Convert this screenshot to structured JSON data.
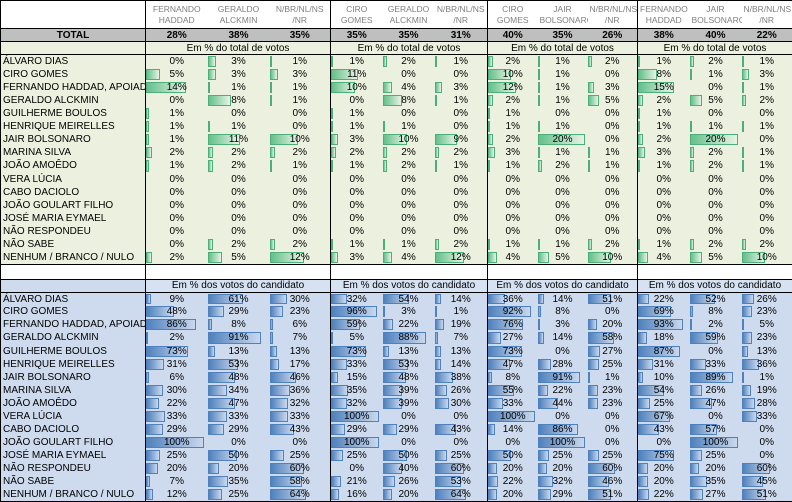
{
  "table": {
    "total_label": "TOTAL",
    "groups": [
      {
        "cols": [
          "FERNANDO HADDAD",
          "GERALDO ALCKMIN",
          "N/BR/NL/NS /NR"
        ],
        "totals": [
          "28%",
          "38%",
          "35%"
        ]
      },
      {
        "cols": [
          "CIRO GOMES",
          "GERALDO ALCKMIN",
          "N/BR/NL/NS /NR"
        ],
        "totals": [
          "35%",
          "35%",
          "31%"
        ]
      },
      {
        "cols": [
          "CIRO GOMES",
          "JAIR BOLSONARO",
          "N/BR/NL/NS /NR"
        ],
        "totals": [
          "40%",
          "35%",
          "26%"
        ]
      },
      {
        "cols": [
          "FERNANDO HADDAD",
          "JAIR BOLSONARO",
          "N/BR/NL/NS /NR"
        ],
        "totals": [
          "38%",
          "40%",
          "22%"
        ]
      }
    ],
    "row_labels": [
      "ÁLVARO DIAS",
      "CIRO GOMES",
      "FERNANDO HADDAD, APOIAD",
      "GERALDO ALCKMIN",
      "GUILHERME BOULOS",
      "HENRIQUE MEIRELLES",
      "JAIR BOLSONARO",
      "MARINA SILVA",
      "JOÃO AMOÊDO",
      "VERA LÚCIA",
      "CABO DACIOLO",
      "JOÃO GOULART FILHO",
      "JOSÉ MARIA EYMAEL",
      "NÃO RESPONDEU",
      "NÃO SABE",
      "NENHUM / BRANCO / NULO"
    ],
    "section1": {
      "label": "Em % do total de votos",
      "bar_max": 20,
      "rows": [
        [
          0,
          3,
          1,
          1,
          2,
          1,
          2,
          1,
          2,
          1,
          2,
          1
        ],
        [
          5,
          3,
          3,
          11,
          0,
          0,
          10,
          1,
          0,
          8,
          1,
          3
        ],
        [
          14,
          1,
          1,
          10,
          4,
          3,
          12,
          1,
          3,
          15,
          0,
          1
        ],
        [
          0,
          8,
          1,
          0,
          8,
          1,
          2,
          1,
          5,
          2,
          5,
          2
        ],
        [
          1,
          0,
          0,
          1,
          0,
          0,
          1,
          0,
          0,
          1,
          0,
          0
        ],
        [
          1,
          1,
          0,
          1,
          1,
          0,
          1,
          1,
          0,
          1,
          1,
          1
        ],
        [
          1,
          11,
          10,
          3,
          10,
          9,
          2,
          20,
          0,
          2,
          20,
          0
        ],
        [
          2,
          2,
          2,
          2,
          2,
          2,
          3,
          1,
          1,
          3,
          2,
          1
        ],
        [
          1,
          2,
          1,
          1,
          2,
          1,
          1,
          2,
          1,
          1,
          2,
          1
        ],
        [
          0,
          0,
          0,
          0,
          0,
          0,
          0,
          0,
          0,
          0,
          0,
          0
        ],
        [
          0,
          0,
          0,
          0,
          0,
          0,
          0,
          0,
          0,
          0,
          0,
          0
        ],
        [
          0,
          0,
          0,
          0,
          0,
          0,
          0,
          0,
          0,
          0,
          0,
          0
        ],
        [
          0,
          0,
          0,
          0,
          0,
          0,
          0,
          0,
          0,
          0,
          0,
          0
        ],
        [
          0,
          0,
          0,
          0,
          0,
          0,
          0,
          0,
          0,
          0,
          0,
          0
        ],
        [
          0,
          2,
          2,
          1,
          1,
          2,
          1,
          1,
          2,
          1,
          2,
          2
        ],
        [
          2,
          5,
          12,
          3,
          4,
          12,
          4,
          5,
          10,
          4,
          5,
          10
        ]
      ]
    },
    "section2": {
      "label": "Em % dos votos do candidato",
      "bar_max": 100,
      "rows": [
        [
          9,
          61,
          30,
          32,
          54,
          14,
          36,
          14,
          51,
          22,
          52,
          26
        ],
        [
          48,
          29,
          23,
          96,
          3,
          1,
          92,
          8,
          0,
          69,
          8,
          23
        ],
        [
          86,
          8,
          6,
          59,
          22,
          19,
          76,
          3,
          20,
          93,
          2,
          5
        ],
        [
          2,
          91,
          7,
          5,
          88,
          7,
          27,
          14,
          58,
          18,
          59,
          23
        ],
        [
          73,
          13,
          13,
          73,
          13,
          13,
          73,
          0,
          27,
          87,
          0,
          13
        ],
        [
          31,
          53,
          17,
          33,
          53,
          14,
          47,
          28,
          25,
          31,
          33,
          36
        ],
        [
          6,
          48,
          46,
          15,
          48,
          38,
          8,
          91,
          1,
          10,
          89,
          1
        ],
        [
          30,
          34,
          36,
          35,
          39,
          26,
          55,
          22,
          23,
          54,
          26,
          19
        ],
        [
          22,
          47,
          32,
          32,
          39,
          30,
          33,
          44,
          23,
          25,
          47,
          28
        ],
        [
          33,
          33,
          33,
          100,
          0,
          0,
          100,
          0,
          0,
          67,
          0,
          33
        ],
        [
          29,
          29,
          43,
          29,
          29,
          43,
          14,
          86,
          0,
          43,
          57,
          0
        ],
        [
          100,
          0,
          0,
          100,
          0,
          0,
          0,
          100,
          0,
          0,
          100,
          0
        ],
        [
          25,
          50,
          25,
          25,
          50,
          25,
          50,
          25,
          25,
          75,
          25,
          0
        ],
        [
          20,
          20,
          60,
          0,
          40,
          60,
          20,
          20,
          60,
          20,
          20,
          60
        ],
        [
          7,
          35,
          58,
          21,
          26,
          53,
          22,
          32,
          46,
          20,
          35,
          45
        ],
        [
          12,
          25,
          64,
          16,
          20,
          64,
          20,
          29,
          51,
          22,
          27,
          51
        ]
      ]
    },
    "colors": {
      "section1_bg": "#ebf1de",
      "section2_bg": "#cedbee",
      "total_row_bg": "#bfbfbf",
      "green_bar": "#63c08b",
      "blue_bar": "#4f81bd",
      "header_text": "#7f7f7f"
    }
  }
}
